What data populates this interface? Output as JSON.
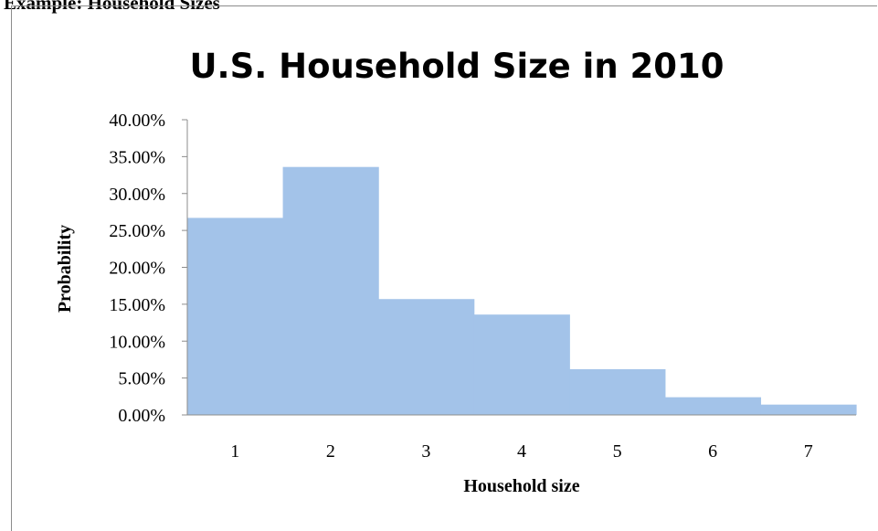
{
  "document": {
    "heading": "Example: Household Sizes"
  },
  "chart_data": {
    "type": "bar",
    "title": "U.S. Household Size in 2010",
    "xlabel": "Household size",
    "ylabel": "Probability",
    "categories": [
      "1",
      "2",
      "3",
      "4",
      "5",
      "6",
      "7"
    ],
    "values": [
      0.267,
      0.336,
      0.157,
      0.136,
      0.062,
      0.024,
      0.014
    ],
    "ylim": [
      0,
      0.4
    ],
    "yticks": [
      "0.00%",
      "5.00%",
      "10.00%",
      "15.00%",
      "20.00%",
      "25.00%",
      "30.00%",
      "35.00%",
      "40.00%"
    ],
    "grid": false,
    "legend": "none",
    "bar_color": "#a3c3e9"
  }
}
